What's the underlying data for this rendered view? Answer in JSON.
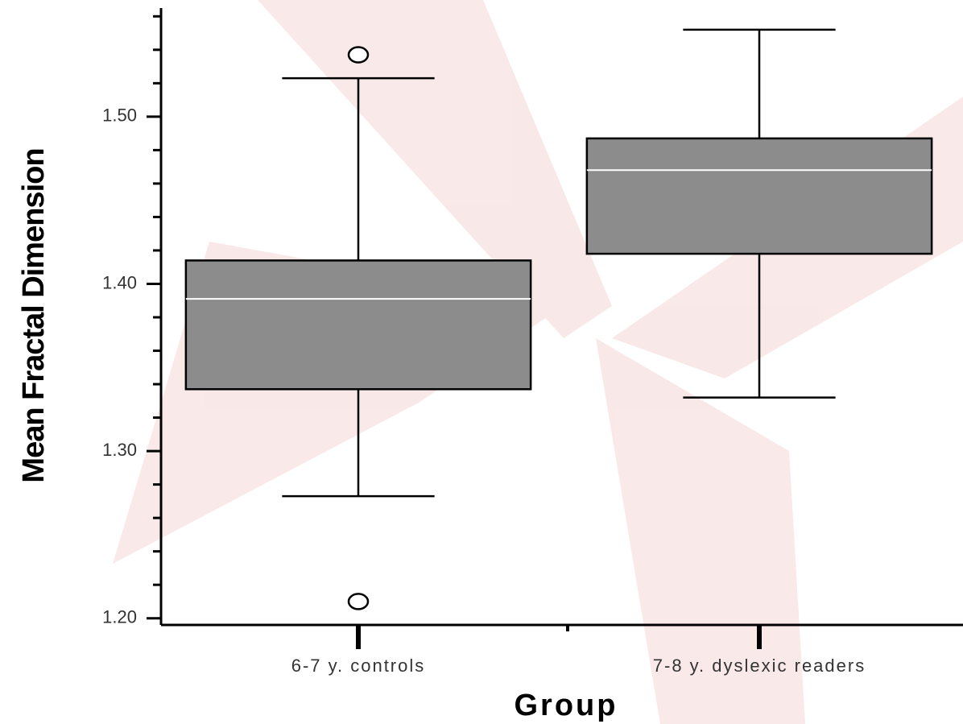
{
  "chart_data": {
    "type": "box",
    "y_label": "Mean Fractal Dimension",
    "x_label": "Group",
    "categories": [
      "6-7 y. controls",
      "7-8 y. dyslexic readers"
    ],
    "boxes": [
      {
        "whislo": 1.273,
        "q1": 1.337,
        "med": 1.391,
        "q3": 1.414,
        "whishi": 1.523,
        "fliers": [
          1.537,
          1.21
        ]
      },
      {
        "whislo": 1.332,
        "q1": 1.418,
        "med": 1.468,
        "q3": 1.487,
        "whishi": 1.552,
        "fliers": []
      }
    ],
    "color": "#8c8c8c",
    "median_color": "#ffffff",
    "ylim": [
      1.196,
      1.564
    ],
    "yticks": [
      {
        "value": 1.2,
        "label": "1.20"
      },
      {
        "value": 1.3,
        "label": "1.30"
      },
      {
        "value": 1.4,
        "label": "1.40"
      },
      {
        "value": 1.5,
        "label": "1.50"
      }
    ],
    "minor_yticks": [
      1.22,
      1.24,
      1.26,
      1.28,
      1.32,
      1.34,
      1.36,
      1.38,
      1.42,
      1.44,
      1.46,
      1.48,
      1.52,
      1.54,
      1.56
    ]
  }
}
